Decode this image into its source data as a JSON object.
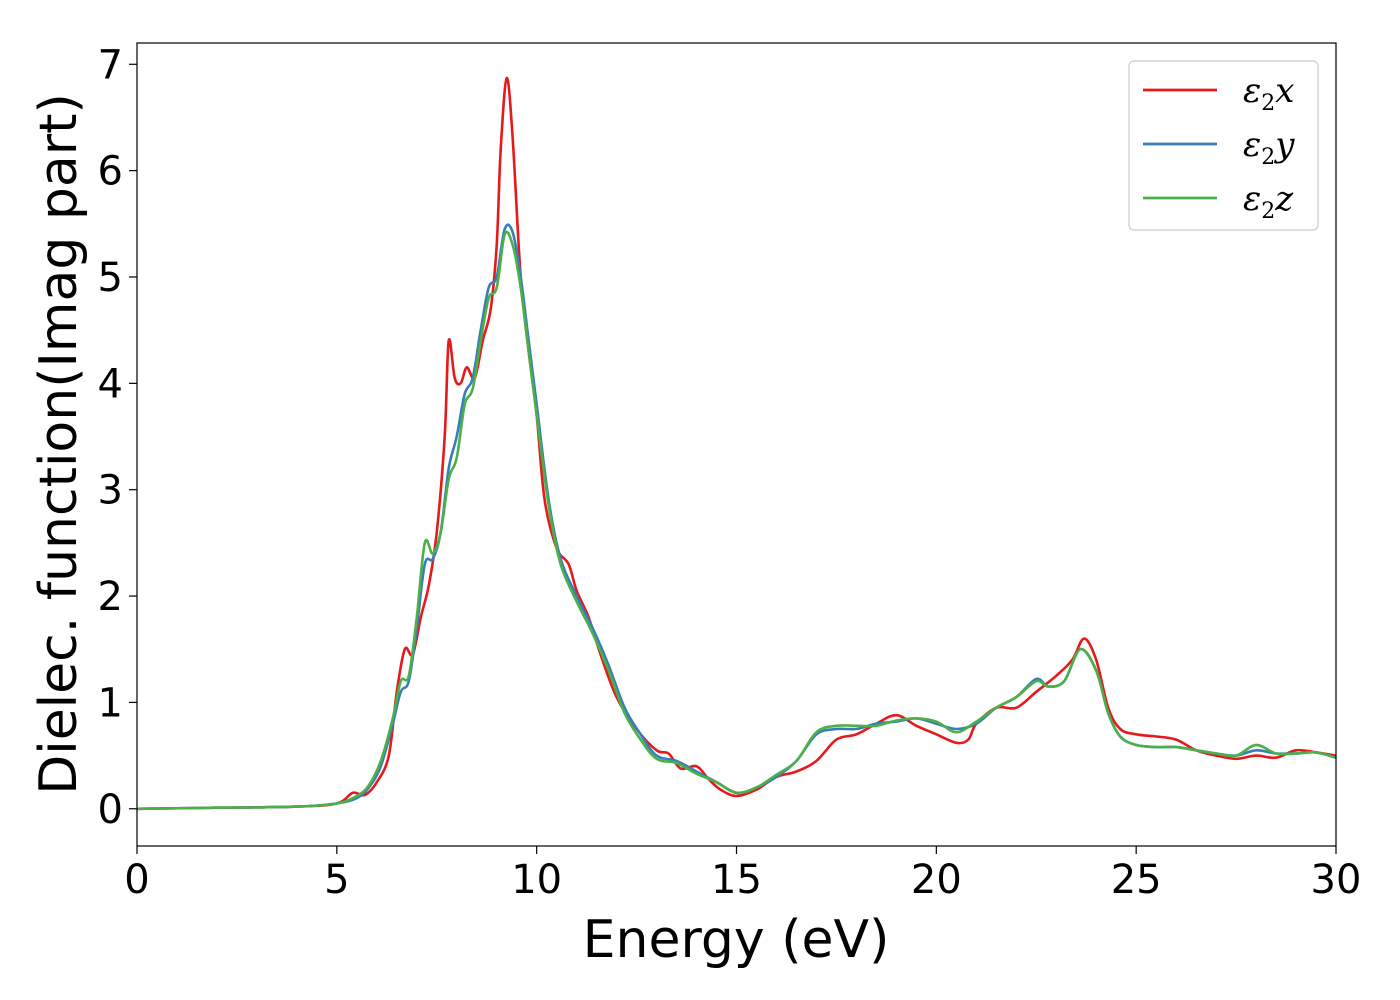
{
  "chart_data": {
    "type": "line",
    "xlabel": "Energy (eV)",
    "ylabel": "Dielec. function(Imag part)",
    "xlim": [
      0,
      30
    ],
    "ylim": [
      -0.35,
      7.2
    ],
    "xticks": [
      0,
      5,
      10,
      15,
      20,
      25,
      30
    ],
    "yticks": [
      0,
      1,
      2,
      3,
      4,
      5,
      6,
      7
    ],
    "grid": false,
    "legend_position": "top-right",
    "series": [
      {
        "name": "ε2x",
        "legend_base": "ε",
        "legend_sub": "2",
        "legend_var": "x",
        "color": "#e41a1c",
        "points": [
          [
            0,
            0.0
          ],
          [
            2,
            0.01
          ],
          [
            4,
            0.02
          ],
          [
            5,
            0.05
          ],
          [
            5.4,
            0.15
          ],
          [
            5.7,
            0.13
          ],
          [
            6.0,
            0.25
          ],
          [
            6.3,
            0.5
          ],
          [
            6.5,
            1.1
          ],
          [
            6.7,
            1.5
          ],
          [
            6.9,
            1.45
          ],
          [
            7.1,
            1.8
          ],
          [
            7.3,
            2.1
          ],
          [
            7.5,
            2.6
          ],
          [
            7.7,
            3.5
          ],
          [
            7.8,
            4.4
          ],
          [
            7.95,
            4.05
          ],
          [
            8.1,
            4.0
          ],
          [
            8.25,
            4.15
          ],
          [
            8.45,
            4.05
          ],
          [
            8.65,
            4.4
          ],
          [
            8.85,
            4.7
          ],
          [
            9.0,
            5.3
          ],
          [
            9.1,
            6.2
          ],
          [
            9.25,
            6.87
          ],
          [
            9.4,
            6.3
          ],
          [
            9.6,
            5.0
          ],
          [
            9.8,
            4.3
          ],
          [
            10.0,
            3.7
          ],
          [
            10.2,
            2.9
          ],
          [
            10.5,
            2.45
          ],
          [
            10.8,
            2.3
          ],
          [
            11.0,
            2.05
          ],
          [
            11.3,
            1.8
          ],
          [
            11.6,
            1.45
          ],
          [
            12.0,
            1.05
          ],
          [
            12.5,
            0.75
          ],
          [
            13.0,
            0.55
          ],
          [
            13.3,
            0.52
          ],
          [
            13.6,
            0.38
          ],
          [
            14.0,
            0.4
          ],
          [
            14.3,
            0.28
          ],
          [
            14.6,
            0.18
          ],
          [
            15.0,
            0.12
          ],
          [
            15.5,
            0.18
          ],
          [
            16.0,
            0.3
          ],
          [
            16.5,
            0.35
          ],
          [
            17.0,
            0.45
          ],
          [
            17.5,
            0.65
          ],
          [
            18.0,
            0.7
          ],
          [
            18.5,
            0.8
          ],
          [
            19.0,
            0.88
          ],
          [
            19.5,
            0.78
          ],
          [
            20.0,
            0.7
          ],
          [
            20.5,
            0.62
          ],
          [
            20.8,
            0.65
          ],
          [
            21.0,
            0.8
          ],
          [
            21.5,
            0.95
          ],
          [
            22.0,
            0.95
          ],
          [
            22.5,
            1.1
          ],
          [
            23.0,
            1.25
          ],
          [
            23.4,
            1.4
          ],
          [
            23.7,
            1.6
          ],
          [
            24.0,
            1.4
          ],
          [
            24.3,
            0.95
          ],
          [
            24.6,
            0.75
          ],
          [
            25.0,
            0.7
          ],
          [
            25.5,
            0.68
          ],
          [
            26.0,
            0.65
          ],
          [
            26.5,
            0.55
          ],
          [
            27.0,
            0.5
          ],
          [
            27.5,
            0.47
          ],
          [
            28.0,
            0.5
          ],
          [
            28.5,
            0.48
          ],
          [
            29.0,
            0.55
          ],
          [
            29.5,
            0.53
          ],
          [
            30.0,
            0.5
          ]
        ]
      },
      {
        "name": "ε2y",
        "legend_base": "ε",
        "legend_sub": "2",
        "legend_var": "y",
        "color": "#377eb8",
        "points": [
          [
            0,
            0.0
          ],
          [
            2,
            0.01
          ],
          [
            4,
            0.02
          ],
          [
            5,
            0.05
          ],
          [
            5.5,
            0.1
          ],
          [
            5.8,
            0.2
          ],
          [
            6.1,
            0.4
          ],
          [
            6.4,
            0.8
          ],
          [
            6.6,
            1.1
          ],
          [
            6.8,
            1.2
          ],
          [
            7.0,
            1.7
          ],
          [
            7.2,
            2.3
          ],
          [
            7.4,
            2.35
          ],
          [
            7.6,
            2.6
          ],
          [
            7.8,
            3.2
          ],
          [
            8.0,
            3.5
          ],
          [
            8.2,
            3.9
          ],
          [
            8.4,
            4.05
          ],
          [
            8.6,
            4.5
          ],
          [
            8.8,
            4.9
          ],
          [
            9.0,
            5.0
          ],
          [
            9.2,
            5.45
          ],
          [
            9.4,
            5.42
          ],
          [
            9.6,
            5.0
          ],
          [
            9.8,
            4.4
          ],
          [
            10.0,
            3.8
          ],
          [
            10.3,
            2.9
          ],
          [
            10.6,
            2.35
          ],
          [
            11.0,
            2.0
          ],
          [
            11.4,
            1.7
          ],
          [
            11.8,
            1.35
          ],
          [
            12.2,
            0.95
          ],
          [
            12.6,
            0.7
          ],
          [
            13.0,
            0.5
          ],
          [
            13.5,
            0.45
          ],
          [
            14.0,
            0.35
          ],
          [
            14.5,
            0.25
          ],
          [
            15.0,
            0.15
          ],
          [
            15.5,
            0.2
          ],
          [
            16.0,
            0.3
          ],
          [
            16.5,
            0.45
          ],
          [
            17.0,
            0.7
          ],
          [
            17.5,
            0.75
          ],
          [
            18.0,
            0.75
          ],
          [
            18.5,
            0.8
          ],
          [
            19.0,
            0.82
          ],
          [
            19.5,
            0.85
          ],
          [
            20.0,
            0.8
          ],
          [
            20.5,
            0.75
          ],
          [
            21.0,
            0.8
          ],
          [
            21.5,
            0.95
          ],
          [
            22.0,
            1.05
          ],
          [
            22.5,
            1.22
          ],
          [
            22.8,
            1.15
          ],
          [
            23.2,
            1.2
          ],
          [
            23.6,
            1.5
          ],
          [
            24.0,
            1.3
          ],
          [
            24.3,
            0.9
          ],
          [
            24.6,
            0.68
          ],
          [
            25.0,
            0.6
          ],
          [
            25.5,
            0.58
          ],
          [
            26.0,
            0.58
          ],
          [
            26.5,
            0.55
          ],
          [
            27.0,
            0.52
          ],
          [
            27.5,
            0.5
          ],
          [
            28.0,
            0.55
          ],
          [
            28.5,
            0.52
          ],
          [
            29.0,
            0.52
          ],
          [
            29.5,
            0.53
          ],
          [
            30.0,
            0.48
          ]
        ]
      },
      {
        "name": "ε2z",
        "legend_base": "ε",
        "legend_sub": "2",
        "legend_var": "z",
        "color": "#4daf4a",
        "points": [
          [
            0,
            0.0
          ],
          [
            2,
            0.01
          ],
          [
            4,
            0.02
          ],
          [
            5,
            0.05
          ],
          [
            5.5,
            0.12
          ],
          [
            5.8,
            0.22
          ],
          [
            6.1,
            0.45
          ],
          [
            6.4,
            0.85
          ],
          [
            6.6,
            1.2
          ],
          [
            6.8,
            1.25
          ],
          [
            7.0,
            1.8
          ],
          [
            7.2,
            2.5
          ],
          [
            7.4,
            2.4
          ],
          [
            7.6,
            2.6
          ],
          [
            7.8,
            3.1
          ],
          [
            8.0,
            3.3
          ],
          [
            8.2,
            3.8
          ],
          [
            8.4,
            3.95
          ],
          [
            8.6,
            4.4
          ],
          [
            8.8,
            4.8
          ],
          [
            9.0,
            4.9
          ],
          [
            9.2,
            5.4
          ],
          [
            9.4,
            5.3
          ],
          [
            9.6,
            4.9
          ],
          [
            9.8,
            4.3
          ],
          [
            10.0,
            3.7
          ],
          [
            10.3,
            2.85
          ],
          [
            10.6,
            2.3
          ],
          [
            11.0,
            1.95
          ],
          [
            11.4,
            1.65
          ],
          [
            11.8,
            1.3
          ],
          [
            12.2,
            0.9
          ],
          [
            12.6,
            0.65
          ],
          [
            13.0,
            0.47
          ],
          [
            13.5,
            0.43
          ],
          [
            14.0,
            0.33
          ],
          [
            14.5,
            0.25
          ],
          [
            15.0,
            0.15
          ],
          [
            15.5,
            0.2
          ],
          [
            16.0,
            0.32
          ],
          [
            16.5,
            0.45
          ],
          [
            17.0,
            0.72
          ],
          [
            17.5,
            0.78
          ],
          [
            18.0,
            0.78
          ],
          [
            18.5,
            0.78
          ],
          [
            19.0,
            0.83
          ],
          [
            19.5,
            0.85
          ],
          [
            20.0,
            0.82
          ],
          [
            20.5,
            0.72
          ],
          [
            21.0,
            0.82
          ],
          [
            21.5,
            0.95
          ],
          [
            22.0,
            1.05
          ],
          [
            22.5,
            1.2
          ],
          [
            22.8,
            1.15
          ],
          [
            23.2,
            1.2
          ],
          [
            23.6,
            1.5
          ],
          [
            24.0,
            1.3
          ],
          [
            24.3,
            0.9
          ],
          [
            24.6,
            0.68
          ],
          [
            25.0,
            0.6
          ],
          [
            25.5,
            0.58
          ],
          [
            26.0,
            0.58
          ],
          [
            26.5,
            0.55
          ],
          [
            27.0,
            0.52
          ],
          [
            27.5,
            0.5
          ],
          [
            28.0,
            0.6
          ],
          [
            28.5,
            0.52
          ],
          [
            29.0,
            0.52
          ],
          [
            29.5,
            0.53
          ],
          [
            30.0,
            0.48
          ]
        ]
      }
    ]
  }
}
